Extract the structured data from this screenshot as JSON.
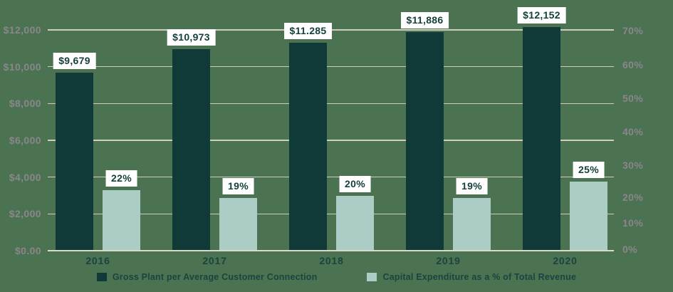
{
  "chart_data": {
    "type": "bar",
    "categories": [
      "2016",
      "2017",
      "2018",
      "2019",
      "2020"
    ],
    "series": [
      {
        "name": "Gross Plant per Average Customer Connection",
        "axis": "left",
        "color": "#0f3a38",
        "values": [
          9679,
          10973,
          11285,
          11886,
          12152
        ],
        "data_labels": [
          "$9,679",
          "$10,973",
          "$11.285",
          "$11,886",
          "$12,152"
        ]
      },
      {
        "name": "Capital Expenditure as a % of Total Revenue",
        "axis": "right",
        "color": "#accdc5",
        "values": [
          22,
          19,
          20,
          19,
          25
        ],
        "data_labels": [
          "22%",
          "19%",
          "20%",
          "19%",
          "25%"
        ]
      }
    ],
    "left_axis": {
      "tick_labels": [
        "$12,000",
        "$10,000",
        "$8,000",
        "$6,000",
        "$4,000",
        "$2,000",
        "$0.00"
      ],
      "range": [
        0,
        12000
      ]
    },
    "right_axis": {
      "tick_labels": [
        "70%",
        "60%",
        "50%",
        "40%",
        "30%",
        "20%",
        "10%",
        "0%"
      ],
      "range": [
        0,
        70
      ],
      "bar_scale_max": 80
    },
    "title": "",
    "grid": true,
    "legend_position": "bottom",
    "colors": {
      "background": "#4b7251",
      "gridline": "#ddd8cb",
      "tick_text": "#8a868c",
      "category_text": "#1b4440",
      "data_label_bg": "#ffffff",
      "data_label_text": "#16403c"
    }
  }
}
